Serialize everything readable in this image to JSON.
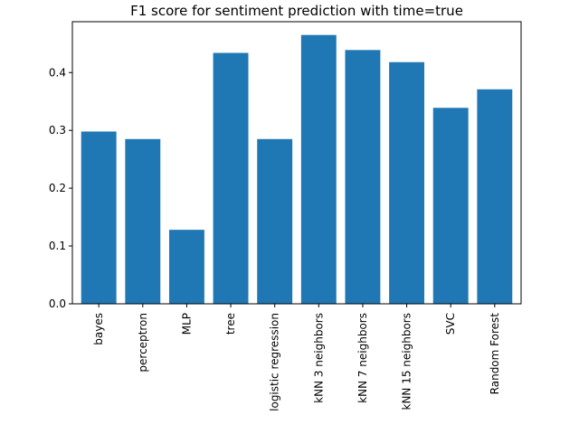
{
  "chart_data": {
    "type": "bar",
    "title": "F1 score for sentiment prediction with time=true",
    "xlabel": "",
    "ylabel": "",
    "categories": [
      "bayes",
      "perceptron",
      "MLP",
      "tree",
      "logistic regression",
      "kNN 3 neighbors",
      "kNN 7 neighbors",
      "kNN 15 neighbors",
      "SVC",
      "Random Forest"
    ],
    "values": [
      0.298,
      0.285,
      0.128,
      0.434,
      0.285,
      0.465,
      0.439,
      0.418,
      0.339,
      0.371
    ],
    "ylim": [
      0,
      0.488
    ],
    "yticks": [
      "0.0",
      "0.1",
      "0.2",
      "0.3",
      "0.4"
    ],
    "grid": false,
    "bar_color": "#1f77b4"
  }
}
